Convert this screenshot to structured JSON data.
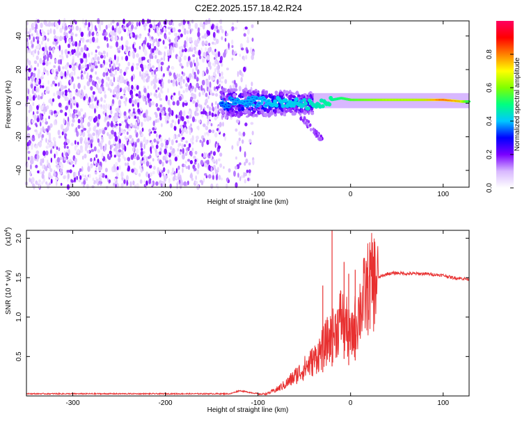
{
  "figure_title": "C2E2.2025.157.18.42.R24",
  "chart_data": [
    {
      "type": "heatmap",
      "xlabel": "Height of straight line (km)",
      "ylabel": "Frequency (Hz)",
      "xlim": [
        -350,
        128
      ],
      "ylim": [
        -50,
        49
      ],
      "xticks": [
        -300,
        -200,
        -100,
        0,
        100
      ],
      "yticks": [
        -40,
        -20,
        0,
        20,
        40
      ],
      "colorbar": {
        "label": "Normalized spectral amplitude",
        "range": [
          0,
          1
        ],
        "ticks": [
          0.0,
          0.2,
          0.4,
          0.6,
          0.8
        ],
        "tick_labels": [
          "0.0",
          "0.2",
          "0.4",
          "0.6",
          "0.8"
        ],
        "colormap": [
          "#ffffff",
          "#d8b8ff",
          "#7a00ff",
          "#0000ff",
          "#00c8ff",
          "#00ff80",
          "#80ff00",
          "#ffff00",
          "#ff8000",
          "#ff0000",
          "#ff0060"
        ]
      },
      "regions": [
        {
          "description_range_km": [
            -350,
            -140
          ],
          "freq_range_hz": [
            -50,
            49
          ],
          "amplitude": 0.1
        },
        {
          "description_range_km": [
            -140,
            -40
          ],
          "freq_range_hz": [
            -10,
            8
          ],
          "amplitude": 0.35
        },
        {
          "description_range_km": [
            -40,
            128
          ],
          "freq_range_hz": [
            -2,
            4
          ],
          "amplitude": 0.8
        }
      ],
      "ridge": {
        "x": [
          -140,
          -120,
          -100,
          -80,
          -60,
          -40,
          -20,
          -10,
          0,
          20,
          40,
          60,
          80,
          100,
          120,
          128
        ],
        "y": [
          0,
          1,
          1,
          1,
          0,
          -1,
          2,
          3,
          2,
          2,
          2,
          2,
          2,
          2,
          1,
          1
        ],
        "amplitude": [
          0.3,
          0.35,
          0.35,
          0.4,
          0.4,
          0.45,
          0.5,
          0.55,
          0.6,
          0.65,
          0.7,
          0.7,
          0.75,
          0.95,
          0.8,
          0.55
        ]
      }
    },
    {
      "type": "line",
      "xlabel": "Height of straight line (km)",
      "ylabel": "SNR (10 * v/v)",
      "y_multiplier": "(x10",
      "y_multiplier_exp": "4",
      "y_multiplier_close": ")",
      "xlim": [
        -350,
        128
      ],
      "ylim": [
        0,
        2.1
      ],
      "xticks": [
        -300,
        -200,
        -100,
        0,
        100
      ],
      "yticks": [
        0.5,
        1.0,
        1.5,
        2.0
      ],
      "ytick_labels": [
        "0.5",
        "1.0",
        "1.5",
        "2.0"
      ],
      "color": "#e83030",
      "series": [
        {
          "x": [
            -350,
            -300,
            -250,
            -200,
            -170,
            -130,
            -120,
            -100,
            -90,
            -80,
            -70,
            -60,
            -50,
            -40,
            -30,
            -25,
            -20,
            -15,
            -10,
            -5,
            0,
            10,
            20,
            30,
            40,
            50,
            60,
            70,
            80,
            90,
            100,
            110,
            120,
            128
          ],
          "y": [
            0.02,
            0.02,
            0.02,
            0.02,
            0.02,
            0.02,
            0.06,
            0.02,
            0.03,
            0.08,
            0.15,
            0.25,
            0.35,
            0.45,
            0.6,
            0.7,
            0.75,
            0.85,
            1.0,
            0.9,
            0.7,
            1.1,
            1.4,
            1.5,
            1.55,
            1.56,
            1.55,
            1.55,
            1.55,
            1.54,
            1.53,
            1.5,
            1.49,
            1.48
          ]
        }
      ],
      "spikes": [
        {
          "x": -20,
          "y": 2.1
        },
        {
          "x": -30,
          "y": 1.4
        },
        {
          "x": -7,
          "y": 1.7
        },
        {
          "x": -2,
          "y": 1.55
        },
        {
          "x": 5,
          "y": 1.6
        }
      ]
    }
  ]
}
